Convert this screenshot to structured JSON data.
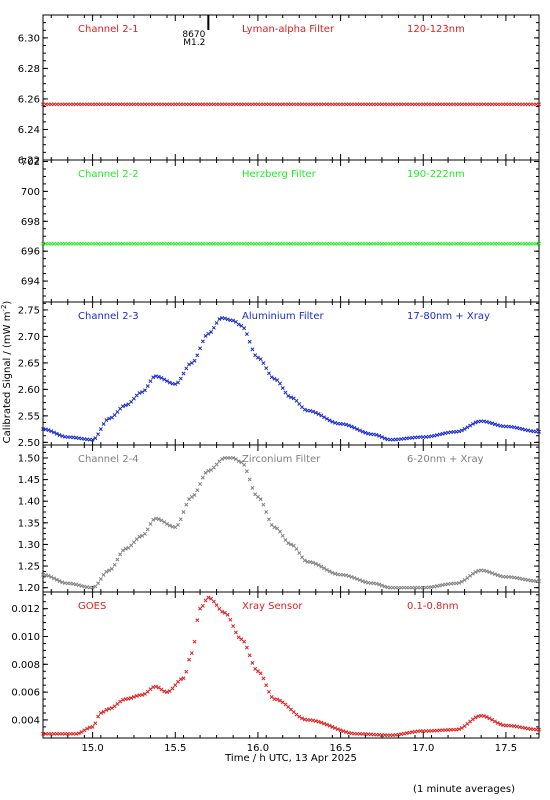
{
  "figure": {
    "ylabel_html_base": "Calibrated Signal / (mW m",
    "ylabel_sup": "-2",
    "ylabel_tail": ")",
    "xlabel": "Time / h UTC, 13 Apr 2025",
    "footnote": "(1 minute averages)",
    "event_marker": {
      "time": 15.7,
      "id": "8670",
      "class": "M1.2"
    }
  },
  "chart_data": [
    {
      "type": "scatter",
      "panel": "Channel 2-1",
      "labels": [
        "Channel 2-1",
        "Lyman-alpha Filter",
        "120-123nm"
      ],
      "color": "#e0201e",
      "ylim": [
        6.22,
        6.315
      ],
      "yticks": [
        "6.22",
        "6.24",
        "6.26",
        "6.28",
        "6.30"
      ],
      "yticks_values": [
        6.22,
        6.24,
        6.26,
        6.28,
        6.3
      ],
      "x": [
        14.7,
        17.7
      ],
      "y": [
        6.2565,
        6.2565
      ]
    },
    {
      "type": "scatter",
      "panel": "Channel 2-2",
      "labels": [
        "Channel 2-2",
        "Herzberg Filter",
        "190-222nm"
      ],
      "color": "#22ee22",
      "ylim": [
        692.6,
        702.1
      ],
      "yticks": [
        "694",
        "696",
        "698",
        "700",
        "702"
      ],
      "yticks_values": [
        694,
        696,
        698,
        700,
        702
      ],
      "x": [
        14.7,
        17.7
      ],
      "y": [
        696.5,
        696.5
      ]
    },
    {
      "type": "scatter",
      "panel": "Channel 2-3",
      "labels": [
        "Channel 2-3",
        "Aluminium Filter",
        "17-80nm + Xray"
      ],
      "color": "#1a2bd0",
      "ylim": [
        2.495,
        2.765
      ],
      "yticks": [
        "2.50",
        "2.55",
        "2.60",
        "2.65",
        "2.70",
        "2.75"
      ],
      "yticks_values": [
        2.5,
        2.55,
        2.6,
        2.65,
        2.7,
        2.75
      ],
      "x": [
        14.7,
        14.85,
        15.0,
        15.1,
        15.2,
        15.3,
        15.38,
        15.5,
        15.6,
        15.7,
        15.78,
        15.85,
        15.9,
        16.0,
        16.1,
        16.2,
        16.3,
        16.5,
        16.7,
        16.8,
        17.0,
        17.2,
        17.35,
        17.5,
        17.7
      ],
      "y": [
        2.525,
        2.51,
        2.505,
        2.545,
        2.57,
        2.595,
        2.625,
        2.61,
        2.65,
        2.705,
        2.735,
        2.73,
        2.72,
        2.66,
        2.62,
        2.585,
        2.56,
        2.535,
        2.515,
        2.505,
        2.51,
        2.52,
        2.54,
        2.53,
        2.52
      ]
    },
    {
      "type": "scatter",
      "panel": "Channel 2-4",
      "labels": [
        "Channel 2-4",
        "Zirconium Filter",
        "6-20nm + Xray"
      ],
      "color": "#808080",
      "ylim": [
        1.19,
        1.53
      ],
      "yticks": [
        "1.20",
        "1.25",
        "1.30",
        "1.35",
        "1.40",
        "1.45",
        "1.50"
      ],
      "yticks_values": [
        1.2,
        1.25,
        1.3,
        1.35,
        1.4,
        1.45,
        1.5
      ],
      "x": [
        14.7,
        14.85,
        15.0,
        15.1,
        15.2,
        15.3,
        15.38,
        15.5,
        15.6,
        15.7,
        15.8,
        15.85,
        15.9,
        16.0,
        16.1,
        16.2,
        16.3,
        16.5,
        16.7,
        16.8,
        17.0,
        17.2,
        17.35,
        17.5,
        17.7
      ],
      "y": [
        1.23,
        1.21,
        1.2,
        1.24,
        1.29,
        1.32,
        1.36,
        1.34,
        1.41,
        1.47,
        1.5,
        1.5,
        1.49,
        1.41,
        1.34,
        1.3,
        1.26,
        1.23,
        1.21,
        1.2,
        1.2,
        1.21,
        1.24,
        1.225,
        1.215
      ]
    },
    {
      "type": "scatter",
      "panel": "GOES",
      "labels": [
        "GOES",
        "Xray Sensor",
        "0.1-0.8nm"
      ],
      "color": "#e0201e",
      "ylim": [
        0.0027,
        0.0132
      ],
      "yticks": [
        "0.004",
        "0.006",
        "0.008",
        "0.010",
        "0.012"
      ],
      "yticks_values": [
        0.004,
        0.006,
        0.008,
        0.01,
        0.012
      ],
      "x": [
        14.7,
        14.9,
        15.0,
        15.05,
        15.1,
        15.2,
        15.3,
        15.38,
        15.45,
        15.55,
        15.6,
        15.65,
        15.7,
        15.8,
        15.9,
        16.0,
        16.1,
        16.3,
        16.6,
        16.8,
        17.0,
        17.2,
        17.35,
        17.5,
        17.7
      ],
      "y": [
        0.003,
        0.003,
        0.0035,
        0.0045,
        0.0048,
        0.0055,
        0.0058,
        0.0064,
        0.006,
        0.007,
        0.0088,
        0.012,
        0.0128,
        0.0117,
        0.0098,
        0.0075,
        0.0055,
        0.004,
        0.003,
        0.0029,
        0.0032,
        0.0033,
        0.0043,
        0.0036,
        0.0033
      ]
    }
  ],
  "xaxis": {
    "xlim": [
      14.7,
      17.7
    ],
    "ticks": [
      "15.0",
      "15.5",
      "16.0",
      "16.5",
      "17.0",
      "17.5"
    ],
    "ticks_values": [
      15.0,
      15.5,
      16.0,
      16.5,
      17.0,
      17.5
    ]
  }
}
